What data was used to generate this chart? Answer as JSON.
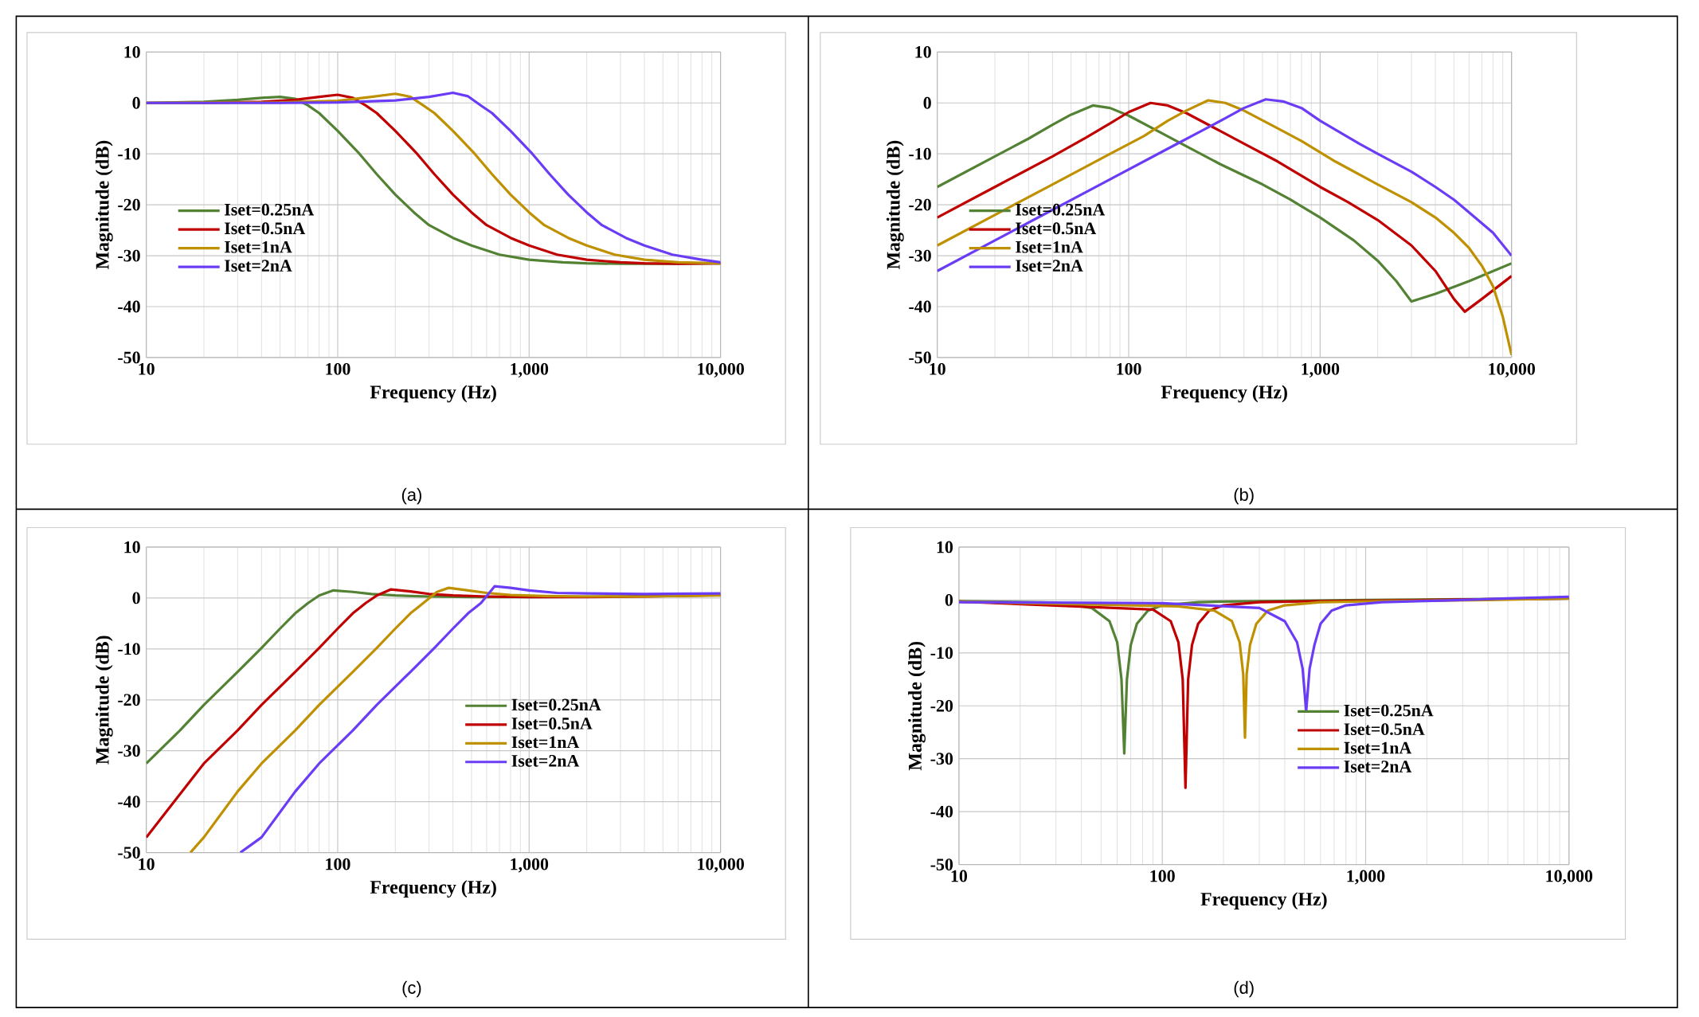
{
  "chart_data": [
    {
      "type": "line",
      "xlabel": "Frequency (Hz)",
      "ylabel": "Magnitude (dB)",
      "log": "x",
      "grid": true,
      "legend": "left",
      "marker": "none",
      "line_style": "solid",
      "xlim": [
        10,
        10000
      ],
      "xticks": [
        {
          "value": 10,
          "label": "10"
        },
        {
          "value": 100,
          "label": "100"
        },
        {
          "value": 1000,
          "label": "1,000"
        },
        {
          "value": 10000,
          "label": "10,000"
        }
      ],
      "ylim": [
        -50,
        10
      ],
      "yticks": [
        -50,
        -40,
        -30,
        -20,
        -10,
        0,
        10
      ],
      "annotations": [
        "(a)"
      ],
      "series": [
        {
          "name": "Iset=0.25nA",
          "color": "#548235",
          "x": [
            10,
            20,
            30,
            40,
            50,
            60,
            70,
            80,
            100,
            130,
            160,
            200,
            250,
            300,
            400,
            500,
            700,
            1000,
            1500,
            2000,
            3000,
            5000,
            10000
          ],
          "values": [
            0,
            0.2,
            0.6,
            1.0,
            1.2,
            0.8,
            -0.5,
            -2,
            -5.5,
            -10,
            -14,
            -18,
            -21.5,
            -24,
            -26.5,
            -28,
            -29.8,
            -30.8,
            -31.3,
            -31.5,
            -31.6,
            -31.6,
            -31.5
          ]
        },
        {
          "name": "Iset=0.5nA",
          "color": "#c00000",
          "x": [
            10,
            20,
            40,
            60,
            80,
            100,
            120,
            140,
            160,
            200,
            260,
            320,
            400,
            500,
            600,
            800,
            1000,
            1400,
            2000,
            3000,
            4000,
            6000,
            10000
          ],
          "values": [
            0,
            0,
            0.2,
            0.6,
            1.2,
            1.6,
            1.0,
            -0.5,
            -2,
            -5.5,
            -10,
            -14,
            -18,
            -21.5,
            -24,
            -26.5,
            -28,
            -29.8,
            -30.8,
            -31.3,
            -31.5,
            -31.6,
            -31.5
          ]
        },
        {
          "name": "Iset=1nA",
          "color": "#bf9000",
          "x": [
            10,
            50,
            100,
            150,
            200,
            240,
            280,
            320,
            400,
            520,
            640,
            800,
            1000,
            1200,
            1600,
            2000,
            2800,
            4000,
            6000,
            10000
          ],
          "values": [
            0,
            0.1,
            0.4,
            1.2,
            1.8,
            1.2,
            -0.5,
            -2,
            -5.5,
            -10,
            -14,
            -18,
            -21.5,
            -24,
            -26.5,
            -28,
            -29.8,
            -30.8,
            -31.3,
            -31.5
          ]
        },
        {
          "name": "Iset=2nA",
          "color": "#6b3cf5",
          "x": [
            10,
            50,
            100,
            200,
            300,
            400,
            480,
            560,
            640,
            800,
            1040,
            1280,
            1600,
            2000,
            2400,
            3200,
            4000,
            5600,
            8000,
            10000
          ],
          "values": [
            0,
            0,
            0.1,
            0.5,
            1.2,
            2,
            1.3,
            -0.5,
            -2,
            -5.5,
            -10,
            -14,
            -18,
            -21.5,
            -24,
            -26.5,
            -28,
            -29.8,
            -30.8,
            -31.3
          ]
        }
      ]
    },
    {
      "type": "line",
      "xlabel": "Frequency (Hz)",
      "ylabel": "Magnitude (dB)",
      "log": "x",
      "grid": true,
      "legend": "left",
      "marker": "none",
      "line_style": "solid",
      "xlim": [
        10,
        10000
      ],
      "xticks": [
        {
          "value": 10,
          "label": "10"
        },
        {
          "value": 100,
          "label": "100"
        },
        {
          "value": 1000,
          "label": "1,000"
        },
        {
          "value": 10000,
          "label": "10,000"
        }
      ],
      "ylim": [
        -50,
        10
      ],
      "yticks": [
        -50,
        -40,
        -30,
        -20,
        -10,
        0,
        10
      ],
      "annotations": [
        "(b)"
      ],
      "series": [
        {
          "name": "Iset=0.25nA",
          "color": "#548235",
          "x": [
            10,
            20,
            30,
            40,
            50,
            65,
            80,
            100,
            150,
            200,
            300,
            500,
            700,
            1000,
            1500,
            2000,
            2500,
            3000,
            4000,
            6000,
            10000
          ],
          "values": [
            -16.5,
            -10.5,
            -7,
            -4.3,
            -2.3,
            -0.5,
            -1,
            -2.5,
            -6,
            -8.5,
            -12,
            -16,
            -19,
            -22.5,
            -27,
            -31,
            -35,
            -39,
            -37.5,
            -35,
            -31.5
          ]
        },
        {
          "name": "Iset=0.5nA",
          "color": "#c00000",
          "x": [
            10,
            20,
            40,
            60,
            80,
            100,
            130,
            160,
            200,
            300,
            400,
            600,
            1000,
            1400,
            2000,
            3000,
            4000,
            5000,
            5700,
            7000,
            10000
          ],
          "values": [
            -22.5,
            -16.5,
            -10.5,
            -6.8,
            -4,
            -1.8,
            0,
            -0.5,
            -2,
            -5.5,
            -8,
            -11.5,
            -16.5,
            -19.5,
            -23,
            -28,
            -33,
            -38.5,
            -41,
            -38.5,
            -34
          ]
        },
        {
          "name": "Iset=1nA",
          "color": "#bf9000",
          "x": [
            10,
            20,
            40,
            80,
            120,
            160,
            200,
            260,
            320,
            400,
            600,
            800,
            1200,
            2000,
            3000,
            4000,
            5000,
            6000,
            7000,
            8000,
            9000,
            10000
          ],
          "values": [
            -28,
            -22,
            -16,
            -10,
            -6.5,
            -3.5,
            -1.5,
            0.5,
            0,
            -1.5,
            -5,
            -7.5,
            -11.5,
            -16,
            -19.5,
            -22.5,
            -25.5,
            -28.5,
            -32,
            -36,
            -42,
            -49.5
          ]
        },
        {
          "name": "Iset=2nA",
          "color": "#6b3cf5",
          "x": [
            10,
            20,
            40,
            80,
            160,
            240,
            320,
            400,
            520,
            640,
            800,
            1000,
            1600,
            2000,
            3000,
            4000,
            5000,
            6000,
            8000,
            10000
          ],
          "values": [
            -33,
            -27,
            -21,
            -15,
            -9,
            -5.5,
            -3,
            -1,
            0.7,
            0.3,
            -1,
            -3.5,
            -8,
            -10,
            -13.5,
            -16.5,
            -19,
            -21.5,
            -25.5,
            -30
          ]
        }
      ]
    },
    {
      "type": "line",
      "xlabel": "Frequency (Hz)",
      "ylabel": "Magnitude (dB)",
      "log": "x",
      "grid": true,
      "legend": "right",
      "marker": "none",
      "line_style": "solid",
      "xlim": [
        10,
        10000
      ],
      "xticks": [
        {
          "value": 10,
          "label": "10"
        },
        {
          "value": 100,
          "label": "100"
        },
        {
          "value": 1000,
          "label": "1,000"
        },
        {
          "value": 10000,
          "label": "10,000"
        }
      ],
      "ylim": [
        -50,
        10
      ],
      "yticks": [
        -50,
        -40,
        -30,
        -20,
        -10,
        0,
        10
      ],
      "annotations": [
        "(c)"
      ],
      "series": [
        {
          "name": "Iset=0.25nA",
          "color": "#548235",
          "x": [
            10,
            15,
            20,
            30,
            40,
            50,
            60,
            70,
            80,
            95,
            120,
            150,
            200,
            300,
            500,
            1000,
            3000,
            10000
          ],
          "values": [
            -32.5,
            -26,
            -21,
            -14.5,
            -9.8,
            -6,
            -3,
            -1,
            0.5,
            1.5,
            1.2,
            0.8,
            0.5,
            0.3,
            0.2,
            0.2,
            0.3,
            0.8
          ]
        },
        {
          "name": "Iset=0.5nA",
          "color": "#c00000",
          "x": [
            10,
            20,
            30,
            40,
            60,
            80,
            100,
            120,
            140,
            160,
            190,
            240,
            300,
            400,
            600,
            1000,
            2000,
            4000,
            10000
          ],
          "values": [
            -47,
            -32.5,
            -26,
            -21,
            -14.5,
            -9.8,
            -6,
            -3,
            -1,
            0.5,
            1.7,
            1.3,
            0.8,
            0.5,
            0.3,
            0.2,
            0.2,
            0.3,
            0.6
          ]
        },
        {
          "name": "Iset=1nA",
          "color": "#bf9000",
          "x": [
            17,
            20,
            30,
            40,
            60,
            80,
            120,
            160,
            200,
            240,
            280,
            330,
            380,
            480,
            600,
            800,
            1200,
            2000,
            4000,
            10000
          ],
          "values": [
            -50,
            -47,
            -38,
            -32.5,
            -26,
            -21,
            -14.5,
            -9.8,
            -6,
            -3,
            -1,
            1.2,
            2,
            1.5,
            1,
            0.6,
            0.4,
            0.3,
            0.3,
            0.5
          ]
        },
        {
          "name": "Iset=2nA",
          "color": "#6b3cf5",
          "x": [
            31,
            40,
            60,
            80,
            120,
            160,
            240,
            320,
            400,
            480,
            560,
            660,
            800,
            1000,
            1400,
            2000,
            4000,
            10000
          ],
          "values": [
            -50,
            -47,
            -38,
            -32.5,
            -26,
            -21,
            -14.5,
            -9.8,
            -6,
            -3,
            -1,
            2.3,
            2,
            1.5,
            1,
            0.9,
            0.8,
            0.9
          ]
        }
      ]
    },
    {
      "type": "line",
      "xlabel": "Frequency (Hz)",
      "ylabel": "Magnitude (dB)",
      "log": "x",
      "grid": true,
      "legend": "right",
      "marker": "none",
      "line_style": "solid",
      "xlim": [
        10,
        10000
      ],
      "xticks": [
        {
          "value": 10,
          "label": "10"
        },
        {
          "value": 100,
          "label": "100"
        },
        {
          "value": 1000,
          "label": "1,000"
        },
        {
          "value": 10000,
          "label": "10,000"
        }
      ],
      "ylim": [
        -50,
        10
      ],
      "yticks": [
        -50,
        -40,
        -30,
        -20,
        -10,
        0,
        10
      ],
      "annotations": [
        "(d)"
      ],
      "series": [
        {
          "name": "Iset=0.25nA",
          "color": "#548235",
          "x": [
            10,
            30,
            45,
            55,
            60,
            63,
            65,
            67,
            70,
            75,
            85,
            100,
            150,
            300,
            1000,
            10000
          ],
          "values": [
            -0.2,
            -0.5,
            -1.5,
            -4,
            -8,
            -15,
            -29,
            -15,
            -8.5,
            -4.5,
            -2,
            -1,
            -0.4,
            -0.2,
            0,
            0.3
          ]
        },
        {
          "name": "Iset=0.5nA",
          "color": "#c00000",
          "x": [
            10,
            60,
            90,
            110,
            120,
            126,
            130,
            134,
            140,
            150,
            170,
            200,
            300,
            600,
            2000,
            10000
          ],
          "values": [
            -0.3,
            null,
            -1.8,
            -4,
            -8,
            -15,
            -35.5,
            -15,
            -8.5,
            -4.5,
            -2,
            -1,
            -0.4,
            -0.2,
            0,
            0.3
          ]
        },
        {
          "name": "Iset=1nA",
          "color": "#bf9000",
          "x": [
            10,
            120,
            180,
            220,
            240,
            250,
            255,
            260,
            270,
            290,
            330,
            400,
            600,
            1200,
            4000,
            10000
          ],
          "values": [
            -0.3,
            -1.2,
            -2,
            -4,
            -8,
            -14,
            -26,
            -14,
            -8.5,
            -4.5,
            -2,
            -1,
            -0.4,
            -0.2,
            0,
            0.3
          ]
        },
        {
          "name": "Iset=2nA",
          "color": "#6b3cf5",
          "x": [
            10,
            100,
            300,
            400,
            460,
            490,
            510,
            530,
            560,
            600,
            680,
            800,
            1200,
            2400,
            5000,
            10000
          ],
          "values": [
            -0.4,
            -0.6,
            -1.5,
            -4,
            -8,
            -13,
            -21,
            -13,
            -8.5,
            -4.5,
            -2,
            -1,
            -0.4,
            -0.1,
            0.3,
            0.6
          ]
        }
      ]
    }
  ]
}
